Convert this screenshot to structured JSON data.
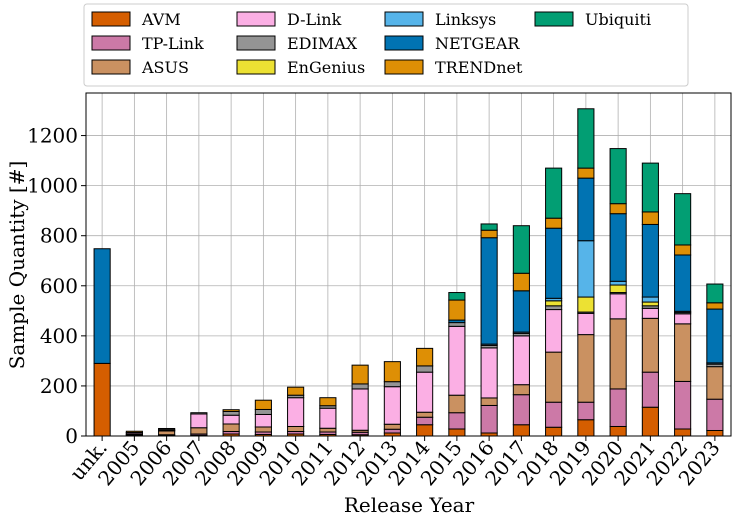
{
  "chart_data": {
    "type": "bar",
    "stacked": true,
    "title": "",
    "xlabel": "Release Year",
    "ylabel": "Sample Quantity [#]",
    "ylim": [
      0,
      1370
    ],
    "yticks": [
      0,
      200,
      400,
      600,
      800,
      1000,
      1200
    ],
    "grid": true,
    "legend_position": "top",
    "categories": [
      "unk.",
      "2005",
      "2006",
      "2007",
      "2008",
      "2009",
      "2010",
      "2011",
      "2012",
      "2013",
      "2014",
      "2015",
      "2016",
      "2017",
      "2018",
      "2019",
      "2020",
      "2021",
      "2022",
      "2023"
    ],
    "series": [
      {
        "name": "AVM",
        "color": "#d55e00",
        "values": [
          290,
          2,
          2,
          3,
          8,
          6,
          8,
          6,
          5,
          12,
          45,
          28,
          12,
          45,
          35,
          65,
          38,
          115,
          28,
          22
        ]
      },
      {
        "name": "TP-Link",
        "color": "#cc79a7",
        "values": [
          0,
          3,
          3,
          5,
          10,
          10,
          10,
          10,
          10,
          15,
          30,
          65,
          110,
          120,
          100,
          70,
          150,
          140,
          190,
          125
        ]
      },
      {
        "name": "ASUS",
        "color": "#ca9161",
        "values": [
          0,
          2,
          15,
          25,
          30,
          20,
          20,
          15,
          8,
          20,
          20,
          70,
          30,
          40,
          200,
          270,
          280,
          215,
          230,
          130
        ]
      },
      {
        "name": "D-Link",
        "color": "#fbafe4",
        "values": [
          0,
          5,
          2,
          55,
          35,
          50,
          115,
          80,
          165,
          150,
          160,
          275,
          200,
          195,
          170,
          85,
          100,
          40,
          40,
          0
        ]
      },
      {
        "name": "EDIMAX",
        "color": "#949494",
        "values": [
          0,
          2,
          5,
          5,
          15,
          20,
          10,
          10,
          20,
          20,
          25,
          15,
          10,
          10,
          15,
          5,
          5,
          10,
          5,
          10
        ]
      },
      {
        "name": "EnGenius",
        "color": "#ece133",
        "values": [
          0,
          0,
          0,
          0,
          0,
          0,
          0,
          0,
          0,
          0,
          0,
          0,
          0,
          0,
          20,
          60,
          30,
          15,
          0,
          0
        ]
      },
      {
        "name": "Linksys",
        "color": "#56b4e9",
        "values": [
          0,
          0,
          0,
          0,
          0,
          0,
          0,
          0,
          0,
          0,
          0,
          0,
          5,
          5,
          10,
          225,
          15,
          20,
          5,
          5
        ]
      },
      {
        "name": "NETGEAR",
        "color": "#0173b2",
        "values": [
          458,
          0,
          0,
          0,
          0,
          0,
          0,
          0,
          0,
          0,
          0,
          10,
          425,
          165,
          280,
          250,
          270,
          290,
          225,
          215
        ]
      },
      {
        "name": "TRENDnet",
        "color": "#de8f05",
        "values": [
          0,
          5,
          3,
          0,
          7,
          37,
          32,
          32,
          75,
          80,
          70,
          80,
          30,
          70,
          40,
          40,
          40,
          50,
          40,
          25
        ]
      },
      {
        "name": "Ubiquiti",
        "color": "#029e73",
        "values": [
          0,
          0,
          0,
          0,
          0,
          0,
          0,
          0,
          0,
          0,
          0,
          30,
          25,
          190,
          200,
          237,
          220,
          195,
          205,
          75
        ]
      }
    ]
  }
}
